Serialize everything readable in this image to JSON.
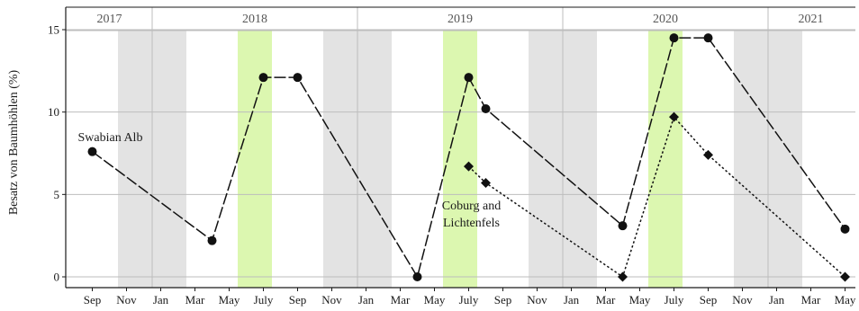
{
  "chart_data": {
    "type": "line",
    "ylabel": "Besatz von Baumhöhlen (%)",
    "ylim": [
      0,
      15
    ],
    "y_ticks": [
      0,
      5,
      10,
      15
    ],
    "x_tick_labels": [
      "Sep",
      "Nov",
      "Jan",
      "Mar",
      "May",
      "July",
      "Sep",
      "Nov",
      "Jan",
      "Mar",
      "May",
      "July",
      "Sep",
      "Nov",
      "Jan",
      "Mar",
      "May",
      "July",
      "Sep",
      "Nov",
      "Jan",
      "Mar",
      "May"
    ],
    "years": [
      {
        "label": "2017",
        "start": "2017-08",
        "end": "2017-12"
      },
      {
        "label": "2018",
        "start": "2018-01",
        "end": "2018-12"
      },
      {
        "label": "2019",
        "start": "2019-01",
        "end": "2019-12"
      },
      {
        "label": "2020",
        "start": "2020-01",
        "end": "2020-12"
      },
      {
        "label": "2021",
        "start": "2021-01",
        "end": "2021-05"
      }
    ],
    "shaded_periods": {
      "winter_color": "#e3e3e3",
      "summer_color": "#dcf7b0",
      "winter": [
        [
          "2017-11",
          "2018-02"
        ],
        [
          "2018-11",
          "2019-02"
        ],
        [
          "2019-11",
          "2020-02"
        ],
        [
          "2020-11",
          "2021-02"
        ]
      ],
      "summer": [
        [
          "2018-06",
          "2018-07"
        ],
        [
          "2019-06",
          "2019-07"
        ],
        [
          "2020-06",
          "2020-07"
        ]
      ]
    },
    "grid": true,
    "series": [
      {
        "marker": "circle",
        "line_style": "long-dash",
        "x": [
          "2017-09",
          "2018-04",
          "2018-07",
          "2018-09",
          "2019-04",
          "2019-07",
          "2019-08",
          "2020-04",
          "2020-07",
          "2020-09",
          "2021-05"
        ],
        "y": [
          7.6,
          2.2,
          12.1,
          12.1,
          0.0,
          12.1,
          10.2,
          3.1,
          14.5,
          14.5,
          2.9
        ]
      },
      {
        "marker": "diamond",
        "line_style": "dotted",
        "x": [
          "2019-07",
          "2019-08",
          "2020-04",
          "2020-07",
          "2020-09",
          "2021-05"
        ],
        "y": [
          6.7,
          5.7,
          0.0,
          9.7,
          7.4,
          0.0
        ]
      }
    ],
    "annotations": [
      {
        "lines": [
          "Swabian Alb"
        ],
        "anchor": "2017-09"
      },
      {
        "lines": [
          "Coburg and",
          "Lichtenfels"
        ],
        "anchor": "2019-07"
      }
    ]
  }
}
